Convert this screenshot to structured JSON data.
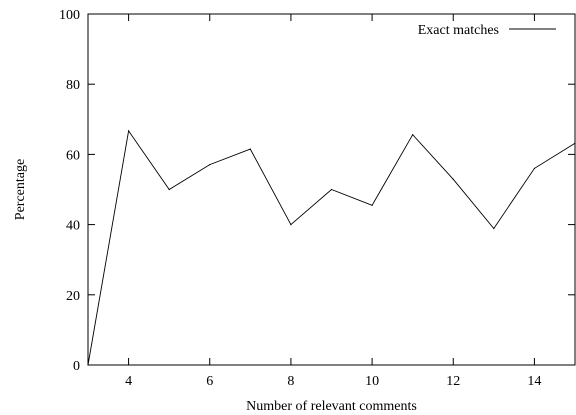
{
  "chart_data": {
    "type": "line",
    "title": "",
    "xlabel": "Number of relevant comments",
    "ylabel": "Percentage",
    "xlim": [
      3,
      15
    ],
    "ylim": [
      0,
      100
    ],
    "xticks": [
      4,
      6,
      8,
      10,
      12,
      14
    ],
    "xtick_labels": [
      "4",
      "6",
      "8",
      "10",
      "12",
      "14"
    ],
    "yticks": [
      0,
      20,
      40,
      60,
      80,
      100
    ],
    "ytick_labels": [
      "0",
      "20",
      "40",
      "60",
      "80",
      "100"
    ],
    "grid": false,
    "legend_position": "top-right",
    "series": [
      {
        "name": "Exact matches",
        "color": "#000000",
        "x": [
          3,
          4,
          5,
          6,
          7,
          8,
          9,
          10,
          11,
          12,
          13,
          14,
          15
        ],
        "values": [
          0,
          66.7,
          50,
          57.1,
          61.5,
          40,
          50,
          45.5,
          65.6,
          52.9,
          38.9,
          56,
          63.2
        ]
      }
    ]
  }
}
